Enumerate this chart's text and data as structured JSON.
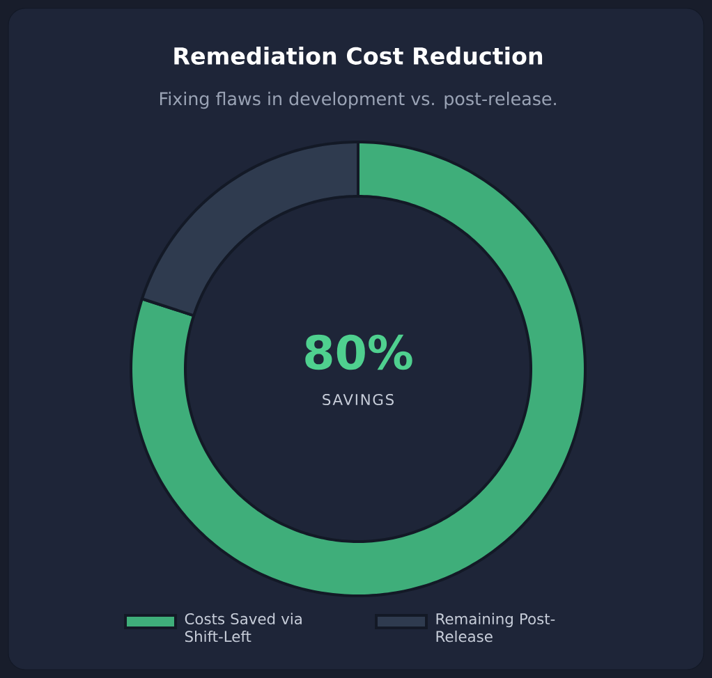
{
  "chart_data": {
    "type": "donut",
    "title": "Remediation Cost Reduction",
    "subtitle": "Fixing flaws in development vs. post-release.",
    "categories": [
      "Costs Saved via Shift-Left",
      "Remaining Post-Release"
    ],
    "values": [
      80,
      20
    ],
    "colors": [
      "#3fae7a",
      "#2f3b4f"
    ],
    "legend": "bottom",
    "annotations": [
      "80%",
      "SAVINGS"
    ]
  }
}
